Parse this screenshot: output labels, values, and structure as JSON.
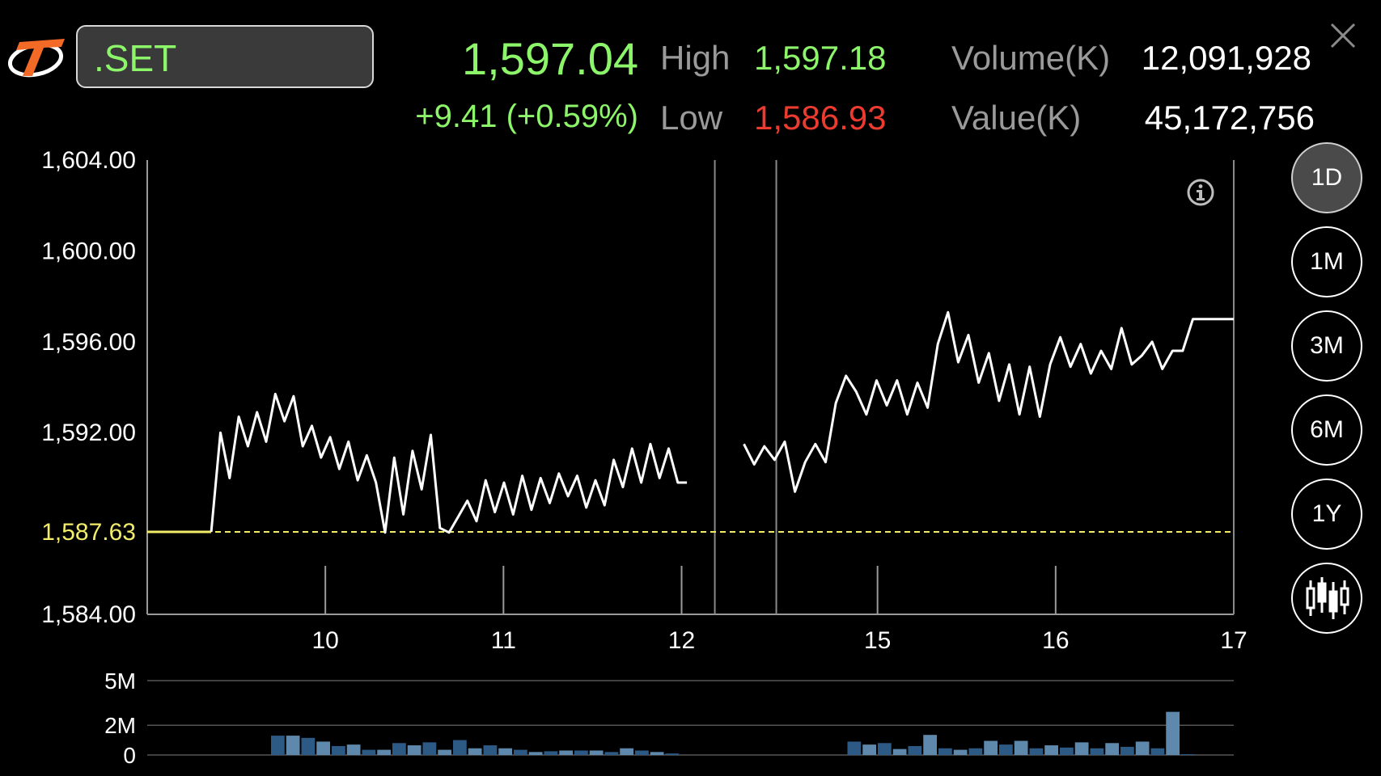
{
  "header": {
    "symbol": ".SET",
    "last_price": "1,597.04",
    "change": "+9.41 (+0.59%)",
    "high_label": "High",
    "high_value": "1,597.18",
    "low_label": "Low",
    "low_value": "1,586.93",
    "volume_label": "Volume(K)",
    "volume_value": "12,091,928",
    "value_label": "Value(K)",
    "value_value": "45,172,756"
  },
  "ranges": [
    "1D",
    "1M",
    "3M",
    "6M",
    "1Y"
  ],
  "active_range": "1D",
  "colors": {
    "up": "#8cf56a",
    "down": "#ee3b30",
    "reference": "#f2ec6a",
    "volume_bar": "#2c5a85",
    "volume_bar_alt": "#5e89ad"
  },
  "chart_data": [
    {
      "type": "line",
      "x_ticks": [
        "10",
        "11",
        "12",
        "15",
        "16",
        "17"
      ],
      "y_ticks": [
        "1,604.00",
        "1,600.00",
        "1,596.00",
        "1,592.00",
        "1,584.00"
      ],
      "ylim": [
        1584,
        1604
      ],
      "reference_line": {
        "value": 1587.63,
        "label": "1,587.63"
      },
      "series": [
        {
          "values": [
            1587.63,
            1587.63,
            1587.63,
            1587.63,
            1587.63,
            1587.63,
            1587.63,
            1587.63,
            1592.0,
            1590.0,
            1592.7,
            1591.4,
            1592.9,
            1591.6,
            1593.7,
            1592.5,
            1593.6,
            1591.4,
            1592.3,
            1590.9,
            1591.8,
            1590.4,
            1591.6,
            1589.9,
            1591.0,
            1589.8,
            1587.6,
            1590.9,
            1588.4,
            1591.2,
            1589.5,
            1591.9,
            1587.8,
            1587.6,
            1588.3,
            1589.0,
            1588.1,
            1589.9,
            1588.5,
            1589.8,
            1588.4,
            1590.1,
            1588.6,
            1590.0,
            1588.9,
            1590.2,
            1589.2,
            1590.1,
            1588.7,
            1589.9,
            1588.8,
            1590.8,
            1589.6,
            1591.3,
            1589.8,
            1591.5,
            1590.0,
            1591.3,
            1589.8,
            1589.8
          ],
          "x_start": 0,
          "x_end": 3.03
        },
        {
          "values": [
            1591.5,
            1590.6,
            1591.4,
            1590.8,
            1591.6,
            1589.4,
            1590.7,
            1591.5,
            1590.7,
            1593.3,
            1594.5,
            1593.8,
            1592.8,
            1594.3,
            1593.2,
            1594.3,
            1592.8,
            1594.2,
            1593.1,
            1595.9,
            1597.3,
            1595.1,
            1596.3,
            1594.2,
            1595.5,
            1593.4,
            1595.0,
            1592.8,
            1594.9,
            1592.7,
            1595.0,
            1596.2,
            1594.9,
            1595.9,
            1594.6,
            1595.6,
            1594.8,
            1596.6,
            1595.0,
            1595.4,
            1596.0,
            1594.8,
            1595.6,
            1595.6,
            1597.0,
            1597.0,
            1597.0,
            1597.0,
            1597.0
          ],
          "x_start": 3.35,
          "x_end": 6.1
        }
      ]
    },
    {
      "type": "bar",
      "title": "Volume",
      "y_ticks": [
        "5M",
        "2M",
        "0"
      ],
      "ylim": [
        0,
        5
      ],
      "values": [
        1.3,
        1.3,
        1.15,
        0.9,
        0.6,
        0.7,
        0.35,
        0.35,
        0.8,
        0.65,
        0.85,
        0.35,
        1.0,
        0.45,
        0.65,
        0.45,
        0.35,
        0.2,
        0.25,
        0.3,
        0.3,
        0.3,
        0.2,
        0.45,
        0.3,
        0.2,
        0.1,
        0,
        0,
        0,
        0,
        0,
        0,
        0,
        0,
        0,
        0,
        0,
        0.9,
        0.7,
        0.8,
        0.4,
        0.6,
        1.35,
        0.45,
        0.35,
        0.45,
        0.95,
        0.7,
        0.95,
        0.45,
        0.65,
        0.5,
        0.85,
        0.45,
        0.8,
        0.55,
        0.9,
        0.45,
        2.9,
        0.05
      ]
    }
  ]
}
